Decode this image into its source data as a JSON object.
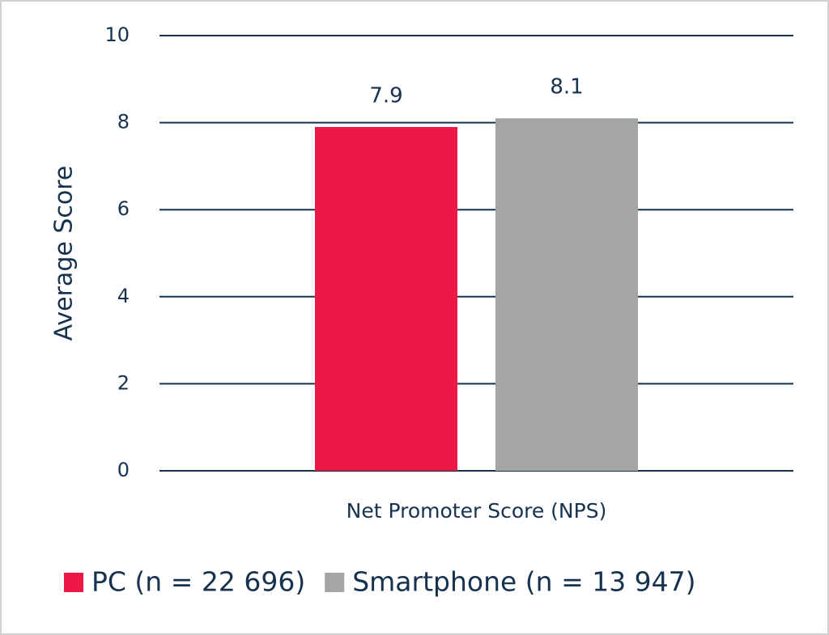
{
  "chart_data": {
    "type": "bar",
    "categories": [
      "Net Promoter Score (NPS)"
    ],
    "series": [
      {
        "name": "PC (n = 22 696)",
        "color": "#ed1846",
        "values": [
          7.9
        ]
      },
      {
        "name": "Smartphone (n = 13 947)",
        "color": "#a5a5a5",
        "values": [
          8.1
        ]
      }
    ],
    "y_label": "Average Score",
    "ylim": [
      0,
      10
    ],
    "yticks": [
      0,
      2,
      4,
      6,
      8,
      10
    ],
    "grid": true,
    "legend": "bottom"
  }
}
